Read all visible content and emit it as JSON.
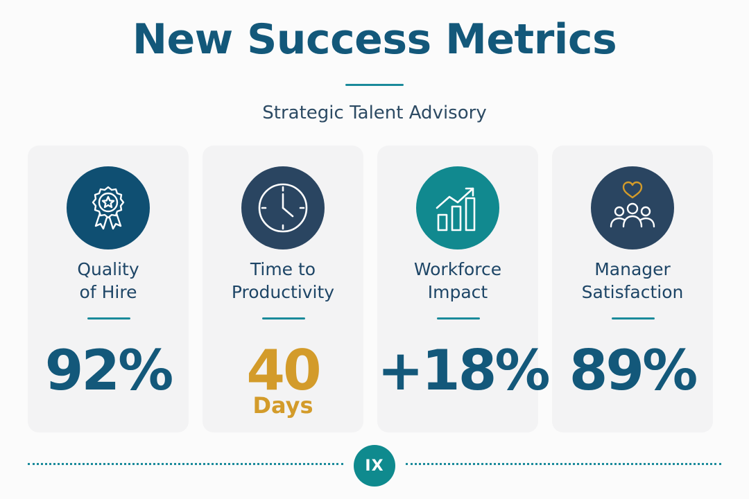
{
  "header": {
    "title": "New Success Metrics",
    "subtitle": "Strategic Talent Advisory"
  },
  "colors": {
    "primary": "#13587a",
    "teal": "#1a8a9a",
    "gold": "#d39b2a",
    "navy_circle": "#0f4f72",
    "slate_circle": "#2a4561",
    "teal_circle": "#11898f",
    "card_bg": "#f3f3f4"
  },
  "cards": [
    {
      "icon": "award-ribbon-icon",
      "label_line1": "Quality",
      "label_line2": "of Hire",
      "value": "92%",
      "unit": ""
    },
    {
      "icon": "clock-icon",
      "label_line1": "Time to",
      "label_line2": "Productivity",
      "value": "40",
      "unit": "Days"
    },
    {
      "icon": "growth-chart-icon",
      "label_line1": "Workforce",
      "label_line2": "Impact",
      "value": "+18%",
      "unit": ""
    },
    {
      "icon": "team-heart-icon",
      "label_line1": "Manager",
      "label_line2": "Satisfaction",
      "value": "89%",
      "unit": ""
    }
  ],
  "footer": {
    "logo_text": "IX"
  }
}
